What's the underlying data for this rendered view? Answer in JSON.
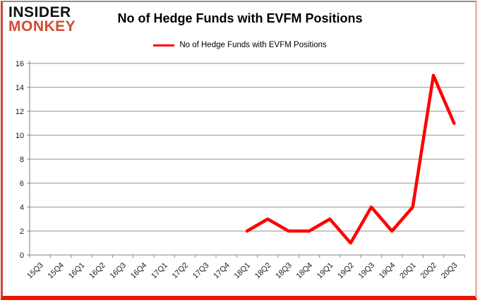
{
  "logo": {
    "line1": "INSIDER",
    "line2": "MONKEY"
  },
  "header": {
    "title": "No of Hedge Funds with EVFM Positions"
  },
  "legend": {
    "label": "No of Hedge Funds with EVFM Positions"
  },
  "chart_data": {
    "type": "line",
    "title": "No of Hedge Funds with EVFM Positions",
    "xlabel": "",
    "ylabel": "",
    "categories": [
      "15Q3",
      "15Q4",
      "16Q1",
      "16Q2",
      "16Q3",
      "16Q4",
      "17Q1",
      "17Q2",
      "17Q3",
      "17Q4",
      "18Q1",
      "18Q2",
      "18Q3",
      "18Q4",
      "19Q1",
      "19Q2",
      "19Q3",
      "19Q4",
      "20Q1",
      "20Q2",
      "20Q3"
    ],
    "series": [
      {
        "name": "No of Hedge Funds with EVFM Positions",
        "values": [
          null,
          null,
          null,
          null,
          null,
          null,
          null,
          null,
          null,
          null,
          2,
          3,
          2,
          2,
          3,
          1,
          4,
          2,
          4,
          15,
          11
        ]
      }
    ],
    "ylim": [
      0,
      16
    ],
    "y_ticks": [
      0,
      2,
      4,
      6,
      8,
      10,
      12,
      14,
      16
    ],
    "grid": true,
    "legend_position": "top",
    "line_color": "#fe0000",
    "grid_color": "#8c8c8c",
    "axis_color": "#808080",
    "tick_label_color": "#1a1a1a"
  },
  "colors": {
    "logo_red": "#d14b32",
    "frame_top": "#8f8f8f",
    "frame_left": "#c94634",
    "frame_right": "#f2b6ae",
    "frame_bottom": "#ec1505",
    "background": "#ffffff"
  }
}
